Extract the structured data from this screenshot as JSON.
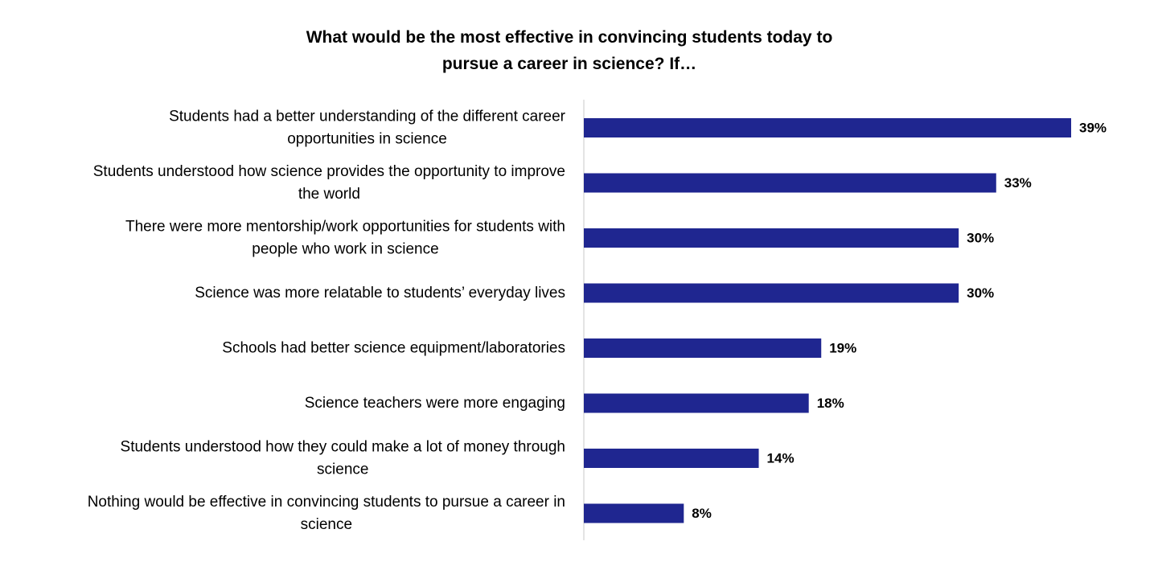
{
  "chart_data": {
    "type": "bar",
    "orientation": "horizontal",
    "title": "What would be the most effective in convincing students today to pursue a career in science? If…",
    "title_lines": [
      "What would be the most effective in convincing students today to",
      "pursue a career in science? If…"
    ],
    "categories": [
      [
        "Students had a better understanding of the different career",
        "opportunities in science"
      ],
      [
        "Students understood how science provides the opportunity to improve",
        "the world"
      ],
      [
        "There were more mentorship/work opportunities for students with",
        "people who work in science"
      ],
      [
        "Science was more relatable to students’ everyday lives"
      ],
      [
        "Schools had better science equipment/laboratories"
      ],
      [
        "Science teachers were more engaging"
      ],
      [
        "Students understood how they could make a lot of money through",
        "science"
      ],
      [
        "Nothing would be effective in convincing students to pursue a career in",
        "science"
      ]
    ],
    "values": [
      39,
      33,
      30,
      30,
      19,
      18,
      14,
      8
    ],
    "value_labels": [
      "39%",
      "33%",
      "30%",
      "30%",
      "19%",
      "18%",
      "14%",
      "8%"
    ],
    "unit": "%",
    "xlim": [
      0,
      39
    ],
    "xlabel": "",
    "ylabel": "",
    "grid": false,
    "legend": "none",
    "bar_color": "#1f2690",
    "axis_color": "#c8c8c8"
  }
}
